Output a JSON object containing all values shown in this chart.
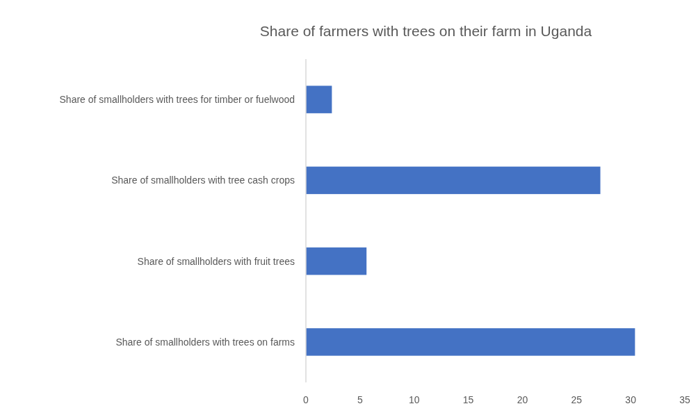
{
  "chart_data": {
    "type": "bar",
    "orientation": "horizontal",
    "title": "Share of farmers with trees on their farm in Uganda",
    "categories": [
      "Share of smallholders with trees for timber or fuelwood",
      "Share of smallholders with tree cash crops",
      "Share of smallholders with fruit trees",
      "Share of smallholders with trees on farms"
    ],
    "values": [
      2.4,
      27.2,
      5.6,
      30.4
    ],
    "color": "#4472c4",
    "xlim": [
      0,
      35
    ],
    "xticks": [
      0,
      5,
      10,
      15,
      20,
      25,
      30,
      35
    ],
    "grid": false
  }
}
